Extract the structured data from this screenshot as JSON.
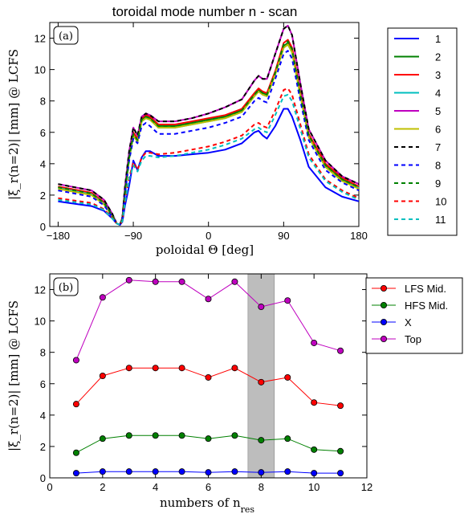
{
  "chart_data": [
    {
      "type": "line",
      "title": "toroidal mode number n - scan",
      "panel_label": "(a)",
      "xlabel": "poloidal Θ [deg]",
      "ylabel": "|ξ_r(n=2)| [mm] @ LCFS",
      "xlim": [
        -190,
        180
      ],
      "ylim": [
        0,
        13
      ],
      "xticks": [
        -180,
        -90,
        0,
        90,
        180
      ],
      "yticks": [
        0,
        2,
        4,
        6,
        8,
        10,
        12
      ],
      "grid": false,
      "legend_position": "outside-right",
      "series": [
        {
          "name": "1",
          "color": "#0000ff",
          "style": "solid",
          "x": [
            -180,
            -160,
            -140,
            -125,
            -115,
            -110,
            -106,
            -103,
            -100,
            -95,
            -90,
            -85,
            -80,
            -75,
            -70,
            -60,
            -40,
            -20,
            0,
            20,
            40,
            55,
            60,
            65,
            70,
            80,
            90,
            95,
            100,
            110,
            120,
            140,
            160,
            180
          ],
          "y": [
            1.6,
            1.45,
            1.3,
            1.0,
            0.5,
            0.2,
            0.1,
            0.3,
            1.3,
            2.6,
            4.2,
            3.6,
            4.4,
            4.8,
            4.8,
            4.5,
            4.5,
            4.6,
            4.7,
            4.9,
            5.3,
            6.0,
            6.1,
            5.8,
            5.6,
            6.4,
            7.5,
            7.5,
            7.0,
            5.5,
            3.8,
            2.5,
            1.9,
            1.6
          ]
        },
        {
          "name": "2",
          "color": "#008000",
          "style": "solid",
          "x": [
            -180,
            -160,
            -140,
            -125,
            -115,
            -110,
            -106,
            -103,
            -100,
            -95,
            -90,
            -85,
            -80,
            -75,
            -70,
            -60,
            -40,
            -20,
            0,
            20,
            40,
            55,
            60,
            65,
            70,
            80,
            90,
            95,
            100,
            110,
            120,
            140,
            160,
            180
          ],
          "y": [
            2.5,
            2.3,
            2.1,
            1.5,
            0.7,
            0.2,
            0.1,
            0.5,
            2.2,
            4.4,
            5.9,
            5.5,
            6.8,
            7.0,
            6.9,
            6.4,
            6.4,
            6.6,
            6.8,
            7.0,
            7.4,
            8.4,
            8.7,
            8.5,
            8.4,
            9.8,
            11.5,
            11.7,
            11.2,
            8.4,
            5.8,
            3.9,
            3.0,
            2.5
          ]
        },
        {
          "name": "3",
          "color": "#ff0000",
          "style": "solid",
          "x": [
            -180,
            -160,
            -140,
            -125,
            -115,
            -110,
            -106,
            -103,
            -100,
            -95,
            -90,
            -85,
            -80,
            -75,
            -70,
            -60,
            -40,
            -20,
            0,
            20,
            40,
            55,
            60,
            65,
            70,
            80,
            90,
            95,
            100,
            110,
            120,
            140,
            160,
            180
          ],
          "y": [
            2.55,
            2.35,
            2.15,
            1.55,
            0.75,
            0.2,
            0.1,
            0.5,
            2.3,
            4.5,
            6.0,
            5.6,
            6.9,
            7.1,
            7.0,
            6.5,
            6.5,
            6.7,
            6.9,
            7.1,
            7.5,
            8.5,
            8.8,
            8.6,
            8.5,
            9.9,
            11.7,
            11.9,
            11.4,
            8.5,
            5.9,
            4.0,
            3.1,
            2.55
          ]
        },
        {
          "name": "4",
          "color": "#00bfbf",
          "style": "solid",
          "x": [
            -180,
            -160,
            -140,
            -125,
            -115,
            -110,
            -106,
            -103,
            -100,
            -95,
            -90,
            -85,
            -80,
            -75,
            -70,
            -60,
            -40,
            -20,
            0,
            20,
            40,
            55,
            60,
            65,
            70,
            80,
            90,
            95,
            100,
            110,
            120,
            140,
            160,
            180
          ],
          "y": [
            2.45,
            2.25,
            2.05,
            1.45,
            0.65,
            0.2,
            0.1,
            0.45,
            2.1,
            4.3,
            5.8,
            5.4,
            6.7,
            6.9,
            6.8,
            6.3,
            6.3,
            6.5,
            6.7,
            6.9,
            7.3,
            8.3,
            8.6,
            8.4,
            8.3,
            9.7,
            11.4,
            11.6,
            11.1,
            8.3,
            5.7,
            3.8,
            2.9,
            2.45
          ]
        },
        {
          "name": "5",
          "color": "#bf00bf",
          "style": "solid",
          "x": [
            -180,
            -160,
            -140,
            -125,
            -115,
            -110,
            -106,
            -103,
            -100,
            -95,
            -90,
            -85,
            -80,
            -75,
            -70,
            -60,
            -40,
            -20,
            0,
            20,
            40,
            55,
            60,
            65,
            70,
            80,
            90,
            95,
            100,
            110,
            120,
            140,
            160,
            180
          ],
          "y": [
            2.7,
            2.5,
            2.3,
            1.7,
            0.8,
            0.2,
            0.1,
            0.6,
            2.5,
            4.8,
            6.3,
            5.8,
            7.0,
            7.2,
            7.1,
            6.7,
            6.7,
            6.9,
            7.2,
            7.6,
            8.1,
            9.3,
            9.6,
            9.4,
            9.4,
            11.0,
            12.6,
            12.8,
            12.2,
            9.1,
            6.2,
            4.2,
            3.2,
            2.7
          ]
        },
        {
          "name": "6",
          "color": "#bfbf00",
          "style": "solid",
          "x": [
            -180,
            -160,
            -140,
            -125,
            -115,
            -110,
            -106,
            -103,
            -100,
            -95,
            -90,
            -85,
            -80,
            -75,
            -70,
            -60,
            -40,
            -20,
            0,
            20,
            40,
            55,
            60,
            65,
            70,
            80,
            90,
            95,
            100,
            110,
            120,
            140,
            160,
            180
          ],
          "y": [
            2.4,
            2.2,
            2.0,
            1.4,
            0.65,
            0.2,
            0.1,
            0.45,
            2.1,
            4.3,
            5.8,
            5.4,
            6.7,
            6.9,
            6.8,
            6.3,
            6.3,
            6.5,
            6.7,
            6.9,
            7.3,
            8.3,
            8.6,
            8.4,
            8.3,
            9.7,
            11.4,
            11.6,
            11.1,
            8.3,
            5.7,
            3.8,
            2.9,
            2.4
          ]
        },
        {
          "name": "7",
          "color": "#000000",
          "style": "dashed",
          "x": [
            -180,
            -160,
            -140,
            -125,
            -115,
            -110,
            -106,
            -103,
            -100,
            -95,
            -90,
            -85,
            -80,
            -75,
            -70,
            -60,
            -40,
            -20,
            0,
            20,
            40,
            55,
            60,
            65,
            70,
            80,
            90,
            95,
            100,
            110,
            120,
            140,
            160,
            180
          ],
          "y": [
            2.7,
            2.5,
            2.3,
            1.7,
            0.8,
            0.2,
            0.1,
            0.6,
            2.5,
            4.8,
            6.3,
            5.8,
            7.0,
            7.2,
            7.1,
            6.7,
            6.7,
            6.9,
            7.2,
            7.6,
            8.1,
            9.3,
            9.6,
            9.4,
            9.4,
            11.0,
            12.6,
            12.8,
            12.2,
            9.1,
            6.2,
            4.2,
            3.2,
            2.7
          ]
        },
        {
          "name": "8",
          "color": "#0000ff",
          "style": "dashed",
          "x": [
            -180,
            -160,
            -140,
            -125,
            -115,
            -110,
            -106,
            -103,
            -100,
            -95,
            -90,
            -85,
            -80,
            -75,
            -70,
            -60,
            -40,
            -20,
            0,
            20,
            40,
            55,
            60,
            65,
            70,
            80,
            90,
            95,
            100,
            110,
            120,
            140,
            160,
            180
          ],
          "y": [
            2.3,
            2.1,
            1.9,
            1.35,
            0.6,
            0.2,
            0.1,
            0.45,
            2.0,
            4.2,
            5.6,
            5.3,
            6.4,
            6.6,
            6.4,
            5.9,
            5.9,
            6.1,
            6.3,
            6.6,
            7.0,
            8.0,
            8.2,
            8.0,
            7.9,
            9.4,
            11.0,
            11.2,
            10.7,
            8.0,
            5.5,
            3.6,
            2.8,
            2.3
          ]
        },
        {
          "name": "9",
          "color": "#008000",
          "style": "dashed",
          "x": [
            -180,
            -160,
            -140,
            -125,
            -115,
            -110,
            -106,
            -103,
            -100,
            -95,
            -90,
            -85,
            -80,
            -75,
            -70,
            -60,
            -40,
            -20,
            0,
            20,
            40,
            55,
            60,
            65,
            70,
            80,
            90,
            95,
            100,
            110,
            120,
            140,
            160,
            180
          ],
          "y": [
            2.5,
            2.3,
            2.1,
            1.5,
            0.7,
            0.2,
            0.1,
            0.5,
            2.2,
            4.4,
            5.9,
            5.5,
            6.8,
            7.0,
            6.9,
            6.4,
            6.4,
            6.6,
            6.8,
            7.0,
            7.4,
            8.4,
            8.7,
            8.5,
            8.4,
            9.8,
            11.6,
            11.8,
            11.3,
            8.4,
            5.8,
            3.9,
            3.0,
            2.5
          ]
        },
        {
          "name": "10",
          "color": "#ff0000",
          "style": "dashed",
          "x": [
            -180,
            -160,
            -140,
            -125,
            -115,
            -110,
            -106,
            -103,
            -100,
            -95,
            -90,
            -85,
            -80,
            -75,
            -70,
            -60,
            -40,
            -20,
            0,
            20,
            40,
            55,
            60,
            65,
            70,
            80,
            90,
            95,
            100,
            110,
            120,
            140,
            160,
            180
          ],
          "y": [
            1.8,
            1.65,
            1.5,
            1.1,
            0.55,
            0.2,
            0.1,
            0.35,
            1.6,
            3.1,
            4.1,
            3.6,
            4.4,
            4.7,
            4.7,
            4.6,
            4.7,
            4.9,
            5.1,
            5.4,
            5.8,
            6.5,
            6.6,
            6.4,
            6.3,
            7.4,
            8.7,
            8.8,
            8.4,
            6.5,
            4.6,
            3.0,
            2.3,
            1.8
          ]
        },
        {
          "name": "11",
          "color": "#00bfbf",
          "style": "dashed",
          "x": [
            -180,
            -160,
            -140,
            -125,
            -115,
            -110,
            -106,
            -103,
            -100,
            -95,
            -90,
            -85,
            -80,
            -75,
            -70,
            -60,
            -40,
            -20,
            0,
            20,
            40,
            55,
            60,
            65,
            70,
            80,
            90,
            95,
            100,
            110,
            120,
            140,
            160,
            180
          ],
          "y": [
            1.7,
            1.55,
            1.4,
            1.05,
            0.5,
            0.2,
            0.1,
            0.35,
            1.5,
            3.0,
            3.9,
            3.5,
            4.2,
            4.5,
            4.5,
            4.4,
            4.5,
            4.7,
            4.9,
            5.2,
            5.6,
            6.2,
            6.3,
            6.1,
            6.0,
            7.1,
            8.3,
            8.4,
            8.0,
            6.2,
            4.4,
            2.9,
            2.2,
            1.7
          ]
        }
      ]
    },
    {
      "type": "line",
      "panel_label": "(b)",
      "xlabel": "numbers of n_res",
      "ylabel": "|ξ_r(n=2)| [mm] @ LCFS",
      "xlim": [
        0,
        12
      ],
      "ylim": [
        0,
        13
      ],
      "xticks": [
        0,
        2,
        4,
        6,
        8,
        10,
        12
      ],
      "yticks": [
        0,
        2,
        4,
        6,
        8,
        10,
        12
      ],
      "grid": false,
      "legend_position": "outside-right",
      "shaded_span": [
        7.5,
        8.5
      ],
      "x": [
        1,
        2,
        3,
        4,
        5,
        6,
        7,
        8,
        9,
        10,
        11
      ],
      "series": [
        {
          "name": "LFS Mid.",
          "color": "#ff0000",
          "values": [
            4.7,
            6.5,
            7.0,
            7.0,
            7.0,
            6.4,
            7.0,
            6.1,
            6.4,
            4.8,
            4.6
          ]
        },
        {
          "name": "HFS Mid.",
          "color": "#008000",
          "values": [
            1.6,
            2.5,
            2.7,
            2.7,
            2.7,
            2.5,
            2.7,
            2.4,
            2.5,
            1.8,
            1.7
          ]
        },
        {
          "name": "X",
          "color": "#0000ff",
          "values": [
            0.3,
            0.4,
            0.4,
            0.4,
            0.4,
            0.35,
            0.4,
            0.35,
            0.4,
            0.3,
            0.3
          ]
        },
        {
          "name": "Top",
          "color": "#bf00bf",
          "values": [
            7.5,
            11.5,
            12.6,
            12.5,
            12.5,
            11.4,
            12.5,
            10.9,
            11.3,
            8.6,
            8.1
          ]
        }
      ]
    }
  ]
}
